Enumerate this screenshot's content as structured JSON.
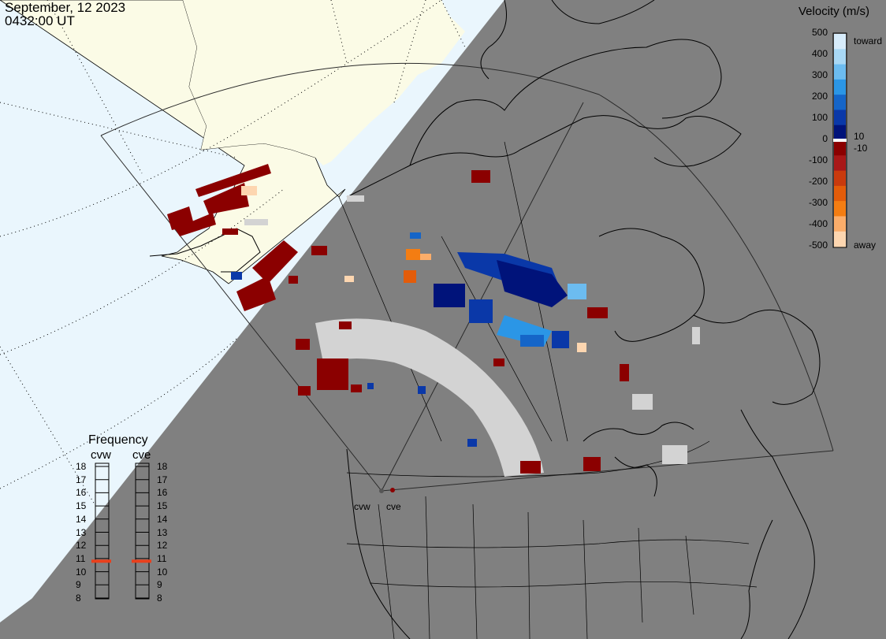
{
  "header": {
    "date": "September, 12 2023",
    "time": "0432:00 UT"
  },
  "velocity_scale": {
    "title": "Velocity (m/s)",
    "ticks": [
      "500",
      "400",
      "300",
      "200",
      "100",
      "0",
      "-100",
      "-200",
      "-300",
      "-400",
      "-500"
    ],
    "inner_ticks": {
      "positive": "10",
      "negative": "-10"
    },
    "toward_label": "toward",
    "away_label": "away",
    "colors": [
      "#d7ecfb",
      "#a8d8f5",
      "#6cbcf0",
      "#2b96e6",
      "#1565c8",
      "#0a38a8",
      "#00137a",
      "#8b0000",
      "#a81818",
      "#c93a0d",
      "#e35c0a",
      "#f47d12",
      "#fbad6a",
      "#fdd6b0"
    ],
    "ground_scatter_color": "#d3d3d3"
  },
  "frequency": {
    "title": "Frequency",
    "radars": [
      "cvw",
      "cve"
    ],
    "ticks": [
      "18",
      "17",
      "16",
      "15",
      "14",
      "13",
      "12",
      "11",
      "10",
      "9",
      "8"
    ],
    "values_mhz": [
      10.8,
      10.8
    ],
    "marker_color": "#e8401c"
  },
  "sites": [
    "cvw",
    "cve"
  ],
  "map_colors": {
    "night": "#808080",
    "day_ocean": "#eaf6fd",
    "day_land": "#fbfbe6",
    "coastline": "#000000",
    "grid": "#000000"
  }
}
